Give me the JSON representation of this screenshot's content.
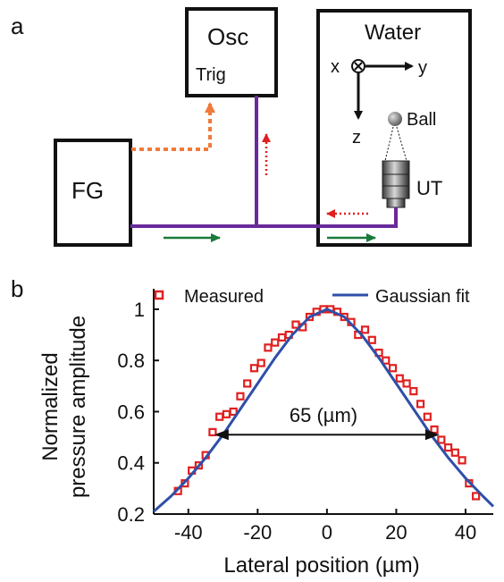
{
  "panel_a": {
    "letter": "a",
    "osc_label": "Osc",
    "trig_label": "Trig",
    "water_label": "Water",
    "fg_label": "FG",
    "axis_x": "x",
    "axis_y": "y",
    "axis_z": "z",
    "ball_label": "Ball",
    "ut_label": "UT",
    "colors": {
      "wire": "#6a2a9a",
      "trigger": "#f07a3a",
      "echo": "#e02020",
      "drive": "#1a7a3a"
    }
  },
  "panel_b": {
    "letter": "b",
    "legend_measured": "Measured",
    "legend_fit": "Gaussian fit",
    "annotation": "65 (µm)",
    "colors": {
      "measured": "#e02020",
      "fit": "#2f4fa8"
    }
  },
  "chart_data": {
    "type": "scatter",
    "xlabel": "Lateral position (µm)",
    "ylabel_line1": "Normalized",
    "ylabel_line2": "pressure amplitude",
    "xlim": [
      -50,
      48
    ],
    "ylim": [
      0.2,
      1.08
    ],
    "xticks": [
      -40,
      -20,
      0,
      20,
      40
    ],
    "xtick_labels": [
      "-40",
      "-20",
      "0",
      "20",
      "40"
    ],
    "yticks": [
      0.2,
      0.4,
      0.6,
      0.8,
      1.0
    ],
    "ytick_labels": [
      "0.2",
      "0.4",
      "0.6",
      "0.8",
      "1"
    ],
    "series": [
      {
        "name": "Measured",
        "type": "scatter",
        "x": [
          -43,
          -41,
          -39,
          -37,
          -35,
          -33,
          -31,
          -29,
          -27,
          -25,
          -23,
          -21,
          -19,
          -17,
          -15,
          -13,
          -11,
          -9,
          -7,
          -5,
          -3,
          -1,
          1,
          3,
          5,
          7,
          9,
          11,
          13,
          15,
          17,
          19,
          21,
          23,
          25,
          27,
          29,
          31,
          33,
          35,
          37,
          39,
          41,
          43
        ],
        "y": [
          0.29,
          0.32,
          0.37,
          0.39,
          0.43,
          0.52,
          0.58,
          0.59,
          0.6,
          0.66,
          0.71,
          0.77,
          0.79,
          0.85,
          0.87,
          0.89,
          0.9,
          0.94,
          0.93,
          0.97,
          0.99,
          1.0,
          1.0,
          0.99,
          0.97,
          0.95,
          0.9,
          0.92,
          0.88,
          0.83,
          0.8,
          0.77,
          0.73,
          0.71,
          0.68,
          0.63,
          0.58,
          0.53,
          0.49,
          0.46,
          0.44,
          0.41,
          0.32,
          0.27
        ]
      },
      {
        "name": "Gaussian fit",
        "type": "line",
        "x": [
          -50,
          -45,
          -40,
          -35,
          -30,
          -25,
          -20,
          -15,
          -10,
          -5,
          0,
          5,
          10,
          15,
          20,
          25,
          30,
          35,
          40,
          45,
          48
        ],
        "y": [
          0.21,
          0.27,
          0.34,
          0.42,
          0.51,
          0.61,
          0.71,
          0.81,
          0.9,
          0.97,
          1.0,
          0.97,
          0.9,
          0.81,
          0.71,
          0.61,
          0.51,
          0.42,
          0.34,
          0.27,
          0.23
        ]
      }
    ],
    "fwhm_annotation": {
      "x_from": -32.5,
      "x_to": 32.5,
      "y": 0.51
    },
    "legend_position": "top"
  }
}
